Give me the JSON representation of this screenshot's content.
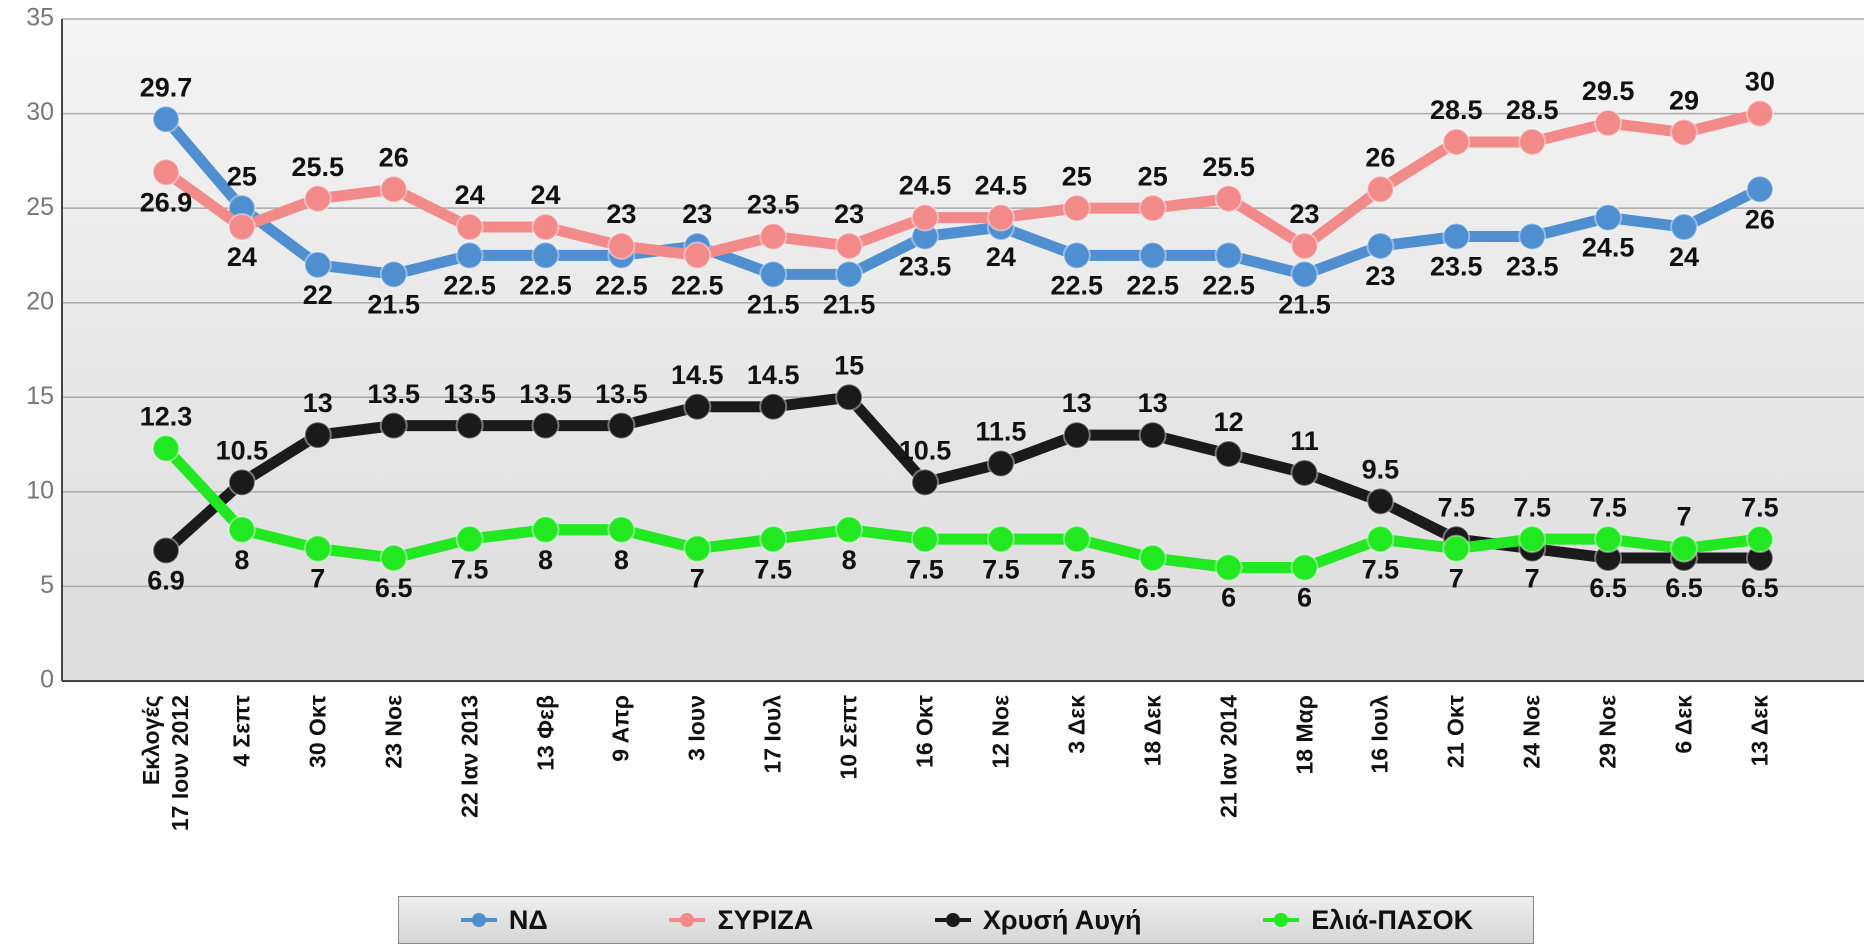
{
  "chart_data": {
    "type": "line",
    "categories": [
      "Εκλογές\n17 Ιουν 2012",
      "4 Σεπτ",
      "30 Οκτ",
      "23 Νοε",
      "22 Ιαν 2013",
      "13 Φεβ",
      "9 Απρ",
      "3 Ιουν",
      "17 Ιουλ",
      "10 Σεπτ",
      "16 Οκτ",
      "12 Νοε",
      "3 Δεκ",
      "18 Δεκ",
      "21 Ιαν 2014",
      "18 Μαρ",
      "16 Ιουλ",
      "21 Οκτ",
      "24 Νοε",
      "29 Νοε",
      "6 Δεκ",
      "13 Δεκ"
    ],
    "series": [
      {
        "name": "ΝΔ",
        "color": "#4f8fd0",
        "values": [
          29.7,
          25,
          22,
          21.5,
          22.5,
          22.5,
          22.5,
          23,
          21.5,
          21.5,
          23.5,
          24,
          22.5,
          22.5,
          22.5,
          21.5,
          23,
          23.5,
          23.5,
          24.5,
          24,
          26
        ]
      },
      {
        "name": "ΣΥΡΙΖΑ",
        "color": "#f28a8a",
        "values": [
          26.9,
          24,
          25.5,
          26,
          24,
          24,
          23,
          22.5,
          23.5,
          23,
          24.5,
          24.5,
          25,
          25,
          25.5,
          23,
          26,
          28.5,
          28.5,
          29.5,
          29,
          30
        ]
      },
      {
        "name": "Χρυσή Αυγή",
        "color": "#1a1a1a",
        "values": [
          6.9,
          10.5,
          13,
          13.5,
          13.5,
          13.5,
          13.5,
          14.5,
          14.5,
          15,
          10.5,
          11.5,
          13,
          13,
          12,
          11,
          9.5,
          7.5,
          7,
          6.5,
          6.5,
          6.5
        ]
      },
      {
        "name": "Ελιά-ΠΑΣΟΚ",
        "color": "#22e822",
        "values": [
          12.3,
          8,
          7,
          6.5,
          7.5,
          8,
          8,
          7,
          7.5,
          8,
          7.5,
          7.5,
          7.5,
          6.5,
          6,
          6,
          7.5,
          7,
          7.5,
          7.5,
          7,
          7.5
        ]
      }
    ],
    "ylim": [
      0,
      35
    ],
    "yticks": [
      0,
      5,
      10,
      15,
      20,
      25,
      30,
      35
    ],
    "grid": true,
    "legend": "bottom"
  }
}
